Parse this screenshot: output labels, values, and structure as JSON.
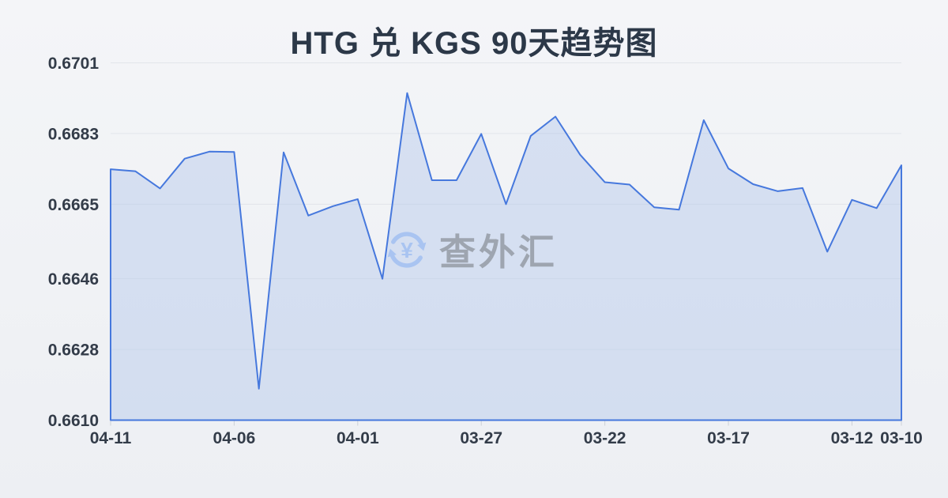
{
  "title": "HTG 兑 KGS 90天趋势图",
  "watermark": {
    "text": "查外汇",
    "icon": "yuan-refresh-icon",
    "icon_glyph": "¥",
    "icon_color": "#a6c2f2",
    "text_color": "#9aa1ab"
  },
  "colors": {
    "background": "#f0f2f5",
    "line": "#4678dd",
    "area_fill": "#a9c0ea",
    "grid": "#e2e5ea",
    "axis_tick": "#ccd0d7",
    "label": "#333c49",
    "title": "#2c3848"
  },
  "chart_data": {
    "type": "area",
    "title": "HTG 兑 KGS 90天趋势图",
    "x": [
      "04-11",
      "04-10",
      "04-09",
      "04-08",
      "04-07",
      "04-06",
      "04-05",
      "04-04",
      "04-03",
      "04-02",
      "04-01",
      "03-31",
      "03-30",
      "03-29",
      "03-28",
      "03-27",
      "03-26",
      "03-25",
      "03-24",
      "03-23",
      "03-22",
      "03-21",
      "03-20",
      "03-19",
      "03-18",
      "03-17",
      "03-16",
      "03-15",
      "03-14",
      "03-13",
      "03-12",
      "03-11",
      "03-10"
    ],
    "values": [
      0.66739,
      0.66734,
      0.6669,
      0.66766,
      0.66784,
      0.66783,
      0.6618,
      0.66782,
      0.66621,
      0.66645,
      0.66663,
      0.6646,
      0.66933,
      0.66711,
      0.66711,
      0.66829,
      0.6665,
      0.66824,
      0.66873,
      0.66776,
      0.66706,
      0.667,
      0.66642,
      0.66636,
      0.66864,
      0.66741,
      0.66701,
      0.66683,
      0.66691,
      0.66529,
      0.66661,
      0.6664,
      0.66749
    ],
    "x_tick_indices": [
      0,
      5,
      10,
      15,
      20,
      25,
      30,
      32
    ],
    "x_tick_labels": [
      "04-11",
      "04-06",
      "04-01",
      "03-27",
      "03-22",
      "03-17",
      "03-12",
      "03-10"
    ],
    "y_ticks": [
      "0.6701",
      "0.6683",
      "0.6665",
      "0.6646",
      "0.6628",
      "0.6610"
    ],
    "ylim": [
      0.661,
      0.6701
    ],
    "xlabel": "",
    "ylabel": "",
    "grid": true,
    "legend": false
  }
}
